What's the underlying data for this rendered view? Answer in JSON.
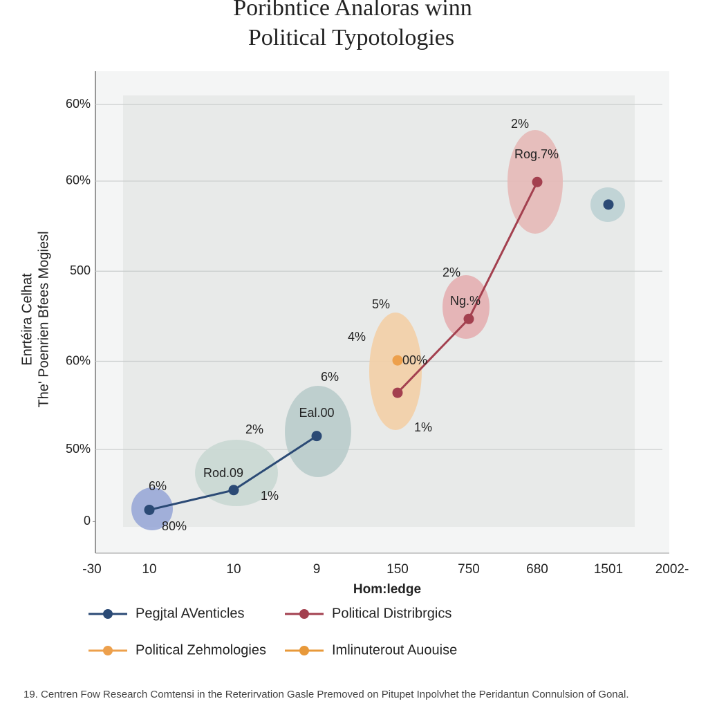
{
  "chart_data": {
    "type": "line",
    "title": [
      "Poribntice Analoras winn",
      "Political Typotologies"
    ],
    "x_label": "Hom:ledge",
    "y_label": [
      "Enrtéira Celhat",
      "The' Poenrien Bfees Mogiesl"
    ],
    "categories": [
      "-30",
      "10",
      "10",
      "9",
      "150",
      "750",
      "680",
      "1501",
      "2002-"
    ],
    "ylim": [
      -35,
      500
    ],
    "yticks": [
      {
        "value": 463,
        "label": "60%"
      },
      {
        "value": 378,
        "label": "60%"
      },
      {
        "value": 278,
        "label": "500"
      },
      {
        "value": 178,
        "label": "60%"
      },
      {
        "value": 80,
        "label": "50%"
      },
      0
    ],
    "grid": true,
    "series": [
      {
        "name": "Pegjtal AVenticles",
        "color": "#2b4a75",
        "values": [
          null,
          13,
          35,
          95,
          null,
          null,
          null,
          352,
          null
        ]
      },
      {
        "name": "Political Distribrgics",
        "color": "#a3404f",
        "values": [
          null,
          null,
          null,
          null,
          143,
          225,
          377,
          null,
          null
        ]
      },
      {
        "name": "Political Zehmologies",
        "color": "#eda04c",
        "values": [
          null,
          null,
          null,
          null,
          179,
          null,
          null,
          null,
          null
        ]
      },
      {
        "name": "Imlinuterout Auouise",
        "color": "#e8993a",
        "values": [
          null,
          null,
          null,
          null,
          null,
          null,
          null,
          null,
          null
        ]
      }
    ],
    "annotations": [
      "6%",
      "80%",
      "Rod.09",
      "2%",
      "1%",
      "6%",
      "Eal.00",
      "4%",
      "5%",
      "00%",
      "1%",
      "2%",
      "Ng.%",
      "2%",
      "Rog.7%"
    ],
    "footnote": "19. Centren Fow Research Comtensi in the Reterirvation Gasle Premoved on Pitupet Inpolvhet the Peridantun Connulsion of Gonal."
  }
}
